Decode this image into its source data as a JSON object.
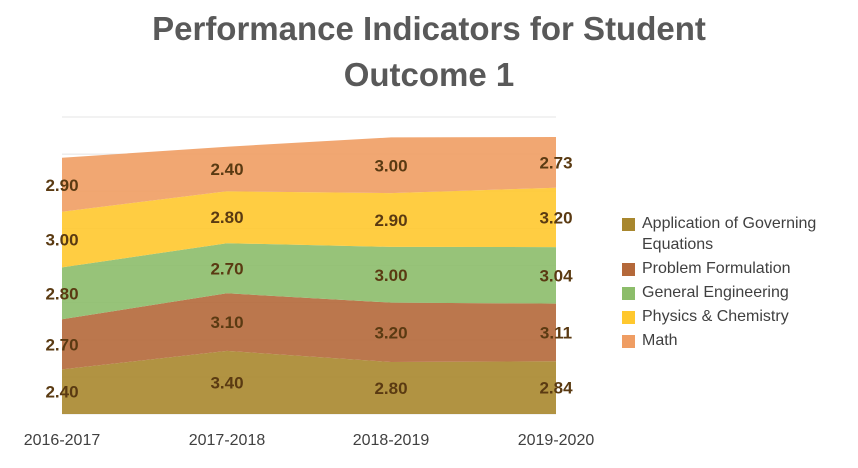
{
  "chart_data": {
    "type": "area",
    "stacked": true,
    "title": [
      "Performance Indicators for Student",
      "Outcome 1"
    ],
    "categories": [
      "2016-2017",
      "2017-2018",
      "2018-2019",
      "2019-2020"
    ],
    "series": [
      {
        "name": "Application of Governing Equations",
        "color": "#A8872E",
        "values": [
          2.4,
          3.4,
          2.8,
          2.84
        ],
        "labels": [
          "2.40",
          "3.40",
          "2.80",
          "2.84"
        ]
      },
      {
        "name": "Problem Formulation",
        "color": "#B4683A",
        "values": [
          2.7,
          3.1,
          3.2,
          3.11
        ],
        "labels": [
          "2.70",
          "3.10",
          "3.20",
          "3.11"
        ]
      },
      {
        "name": "General Engineering",
        "color": "#8CBD6A",
        "values": [
          2.8,
          2.7,
          3.0,
          3.04
        ],
        "labels": [
          "2.80",
          "2.70",
          "3.00",
          "3.04"
        ]
      },
      {
        "name": "Physics & Chemistry",
        "color": "#FFC82E",
        "values": [
          3.0,
          2.8,
          2.9,
          3.2
        ],
        "labels": [
          "3.00",
          "2.80",
          "2.90",
          "3.20"
        ]
      },
      {
        "name": "Math",
        "color": "#EF9D63",
        "values": [
          2.9,
          2.4,
          3.0,
          2.73
        ],
        "labels": [
          "2.90",
          "2.40",
          "3.00",
          "2.73"
        ]
      }
    ],
    "ylim": [
      0,
      16
    ],
    "grid": "horizontal",
    "legend_position": "right"
  }
}
